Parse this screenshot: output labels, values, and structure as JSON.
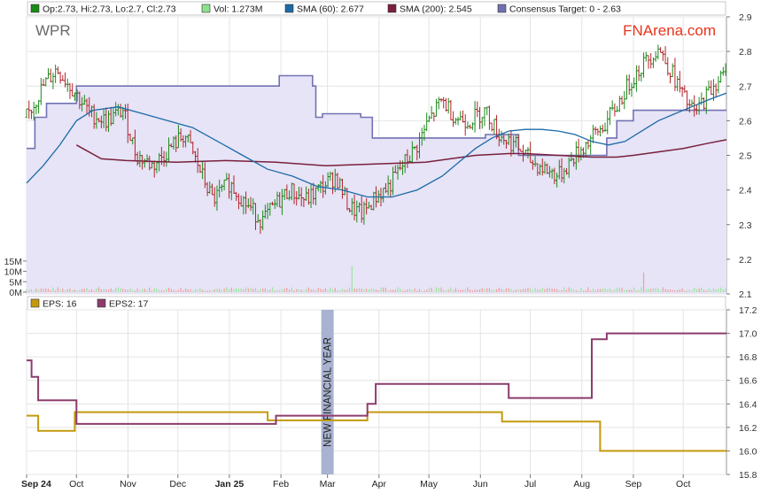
{
  "chart_data": [
    {
      "type": "line",
      "title": "WPR",
      "brand": "FNArena.com",
      "brand_color": "#e8331c",
      "legend": [
        {
          "label": "Op:2.73, Hi:2.73, Lo:2.7, Cl:2.73",
          "color": "#1a8a1a",
          "key": "ohlc"
        },
        {
          "label": "Vol: 1.273M",
          "color": "#8ee08e",
          "key": "vol"
        },
        {
          "label": "SMA (60): 2.677",
          "color": "#1c6aa8",
          "key": "sma60"
        },
        {
          "label": "SMA (200): 2.545",
          "color": "#7a1f3d",
          "key": "sma200"
        },
        {
          "label": "Consensus Target: 0 - 2.63",
          "color": "#7070b0",
          "key": "target"
        }
      ],
      "ylim": [
        2.1,
        2.9
      ],
      "yticks": [
        "2.9",
        "2.8",
        "2.7",
        "2.6",
        "2.5",
        "2.4",
        "2.3",
        "2.2",
        "2.1"
      ],
      "volume_ticks": [
        "15M",
        "10M",
        "5M",
        "0M"
      ],
      "volume_range_m": [
        0,
        15
      ],
      "x_months": [
        "Sep 24",
        "Oct",
        "Nov",
        "Dec",
        "Jan 25",
        "Feb",
        "Mar",
        "Apr",
        "May",
        "Jun",
        "Jul",
        "Aug",
        "Sep",
        "Oct"
      ],
      "bold_months": [
        "Sep 24",
        "Jan 25"
      ],
      "day_range": [
        0,
        421
      ],
      "month_days": [
        0,
        30,
        61,
        91,
        122,
        153,
        181,
        212,
        242,
        273,
        303,
        334,
        365,
        395
      ],
      "price_path": [
        [
          0,
          2.61
        ],
        [
          10,
          2.7
        ],
        [
          18,
          2.75
        ],
        [
          28,
          2.69
        ],
        [
          38,
          2.62
        ],
        [
          48,
          2.6
        ],
        [
          58,
          2.63
        ],
        [
          66,
          2.5
        ],
        [
          76,
          2.47
        ],
        [
          86,
          2.52
        ],
        [
          95,
          2.56
        ],
        [
          104,
          2.46
        ],
        [
          112,
          2.37
        ],
        [
          122,
          2.42
        ],
        [
          132,
          2.36
        ],
        [
          142,
          2.31
        ],
        [
          150,
          2.36
        ],
        [
          158,
          2.4
        ],
        [
          168,
          2.37
        ],
        [
          178,
          2.41
        ],
        [
          186,
          2.44
        ],
        [
          194,
          2.35
        ],
        [
          202,
          2.33
        ],
        [
          210,
          2.38
        ],
        [
          218,
          2.41
        ],
        [
          226,
          2.47
        ],
        [
          234,
          2.52
        ],
        [
          242,
          2.6
        ],
        [
          250,
          2.66
        ],
        [
          258,
          2.61
        ],
        [
          266,
          2.6
        ],
        [
          276,
          2.63
        ],
        [
          284,
          2.56
        ],
        [
          294,
          2.53
        ],
        [
          304,
          2.48
        ],
        [
          312,
          2.46
        ],
        [
          320,
          2.44
        ],
        [
          330,
          2.5
        ],
        [
          340,
          2.55
        ],
        [
          348,
          2.59
        ],
        [
          356,
          2.65
        ],
        [
          364,
          2.72
        ],
        [
          372,
          2.77
        ],
        [
          380,
          2.81
        ],
        [
          388,
          2.74
        ],
        [
          396,
          2.66
        ],
        [
          402,
          2.62
        ],
        [
          410,
          2.68
        ],
        [
          416,
          2.72
        ],
        [
          420,
          2.73
        ]
      ],
      "sma60": [
        [
          0,
          2.42
        ],
        [
          10,
          2.47
        ],
        [
          20,
          2.53
        ],
        [
          30,
          2.6
        ],
        [
          40,
          2.63
        ],
        [
          55,
          2.64
        ],
        [
          70,
          2.62
        ],
        [
          85,
          2.6
        ],
        [
          100,
          2.58
        ],
        [
          115,
          2.54
        ],
        [
          130,
          2.5
        ],
        [
          145,
          2.46
        ],
        [
          160,
          2.44
        ],
        [
          175,
          2.41
        ],
        [
          190,
          2.4
        ],
        [
          205,
          2.38
        ],
        [
          220,
          2.38
        ],
        [
          235,
          2.4
        ],
        [
          250,
          2.44
        ],
        [
          260,
          2.48
        ],
        [
          270,
          2.52
        ],
        [
          280,
          2.55
        ],
        [
          290,
          2.57
        ],
        [
          300,
          2.575
        ],
        [
          310,
          2.575
        ],
        [
          320,
          2.57
        ],
        [
          330,
          2.56
        ],
        [
          340,
          2.54
        ],
        [
          350,
          2.53
        ],
        [
          360,
          2.54
        ],
        [
          370,
          2.57
        ],
        [
          380,
          2.6
        ],
        [
          390,
          2.62
        ],
        [
          400,
          2.64
        ],
        [
          410,
          2.66
        ],
        [
          421,
          2.68
        ]
      ],
      "sma200": [
        [
          30,
          2.53
        ],
        [
          45,
          2.49
        ],
        [
          60,
          2.485
        ],
        [
          90,
          2.48
        ],
        [
          120,
          2.485
        ],
        [
          150,
          2.48
        ],
        [
          180,
          2.47
        ],
        [
          210,
          2.475
        ],
        [
          240,
          2.48
        ],
        [
          255,
          2.49
        ],
        [
          270,
          2.5
        ],
        [
          290,
          2.505
        ],
        [
          300,
          2.505
        ],
        [
          320,
          2.5
        ],
        [
          340,
          2.495
        ],
        [
          355,
          2.495
        ],
        [
          365,
          2.5
        ],
        [
          380,
          2.51
        ],
        [
          395,
          2.52
        ],
        [
          410,
          2.535
        ],
        [
          421,
          2.545
        ]
      ],
      "consensus_target": [
        [
          0,
          2.52
        ],
        [
          5,
          2.52
        ],
        [
          5,
          2.61
        ],
        [
          12,
          2.61
        ],
        [
          12,
          2.65
        ],
        [
          30,
          2.65
        ],
        [
          30,
          2.7
        ],
        [
          152,
          2.7
        ],
        [
          152,
          2.73
        ],
        [
          172,
          2.73
        ],
        [
          172,
          2.7
        ],
        [
          174,
          2.7
        ],
        [
          174,
          2.61
        ],
        [
          178,
          2.61
        ],
        [
          178,
          2.62
        ],
        [
          201,
          2.62
        ],
        [
          201,
          2.61
        ],
        [
          208,
          2.61
        ],
        [
          208,
          2.55
        ],
        [
          276,
          2.55
        ],
        [
          276,
          2.56
        ],
        [
          296,
          2.56
        ],
        [
          296,
          2.5
        ],
        [
          349,
          2.5
        ],
        [
          349,
          2.55
        ],
        [
          355,
          2.55
        ],
        [
          355,
          2.6
        ],
        [
          365,
          2.6
        ],
        [
          365,
          2.63
        ],
        [
          421,
          2.63
        ]
      ],
      "volume_spikes": [
        [
          196,
          12.5
        ],
        [
          371,
          9.5
        ]
      ]
    },
    {
      "type": "line",
      "legend": [
        {
          "label": "EPS: 16",
          "color": "#c39a0e",
          "key": "eps"
        },
        {
          "label": "EPS2: 17",
          "color": "#8c3c6c",
          "key": "eps2"
        }
      ],
      "ylim": [
        15.8,
        17.2
      ],
      "yticks": [
        "17.2",
        "17.0",
        "16.8",
        "16.6",
        "16.4",
        "16.2",
        "16.0",
        "15.8"
      ],
      "annotation": "NEW FINANCIAL YEAR",
      "annotation_day": 181,
      "eps": [
        [
          0,
          16.3
        ],
        [
          7,
          16.3
        ],
        [
          7,
          16.17
        ],
        [
          29,
          16.17
        ],
        [
          29,
          16.33
        ],
        [
          145,
          16.33
        ],
        [
          145,
          16.26
        ],
        [
          205,
          16.26
        ],
        [
          205,
          16.33
        ],
        [
          286,
          16.33
        ],
        [
          286,
          16.25
        ],
        [
          345,
          16.25
        ],
        [
          345,
          16.0
        ],
        [
          421,
          16.0
        ]
      ],
      "eps2": [
        [
          0,
          16.77
        ],
        [
          3,
          16.77
        ],
        [
          3,
          16.63
        ],
        [
          7,
          16.63
        ],
        [
          7,
          16.43
        ],
        [
          30,
          16.43
        ],
        [
          30,
          16.23
        ],
        [
          150,
          16.23
        ],
        [
          150,
          16.3
        ],
        [
          205,
          16.3
        ],
        [
          205,
          16.4
        ],
        [
          210,
          16.4
        ],
        [
          210,
          16.57
        ],
        [
          290,
          16.57
        ],
        [
          290,
          16.45
        ],
        [
          340,
          16.45
        ],
        [
          340,
          16.95
        ],
        [
          349,
          16.95
        ],
        [
          349,
          17.0
        ],
        [
          421,
          17.0
        ]
      ]
    }
  ]
}
